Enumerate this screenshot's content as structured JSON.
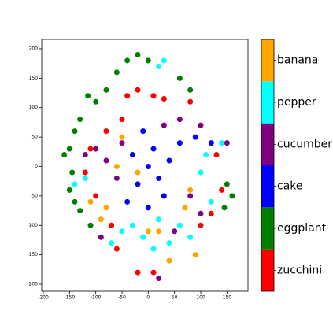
{
  "chart_data": {
    "type": "scatter",
    "xlim": [
      -203,
      190
    ],
    "ylim": [
      -212,
      216
    ],
    "xticks": [
      -200,
      -150,
      -100,
      -50,
      0,
      50,
      100,
      150
    ],
    "yticks": [
      -200,
      -150,
      -100,
      -50,
      0,
      50,
      100,
      150,
      200
    ],
    "series": [
      {
        "name": "zucchini",
        "color": "#ff0000",
        "x": [
          -40,
          -20,
          10,
          30,
          -80,
          -110,
          -120,
          -100,
          -70,
          -60,
          -20,
          10,
          130,
          140,
          120,
          100,
          80,
          -50
        ],
        "y": [
          120,
          130,
          120,
          115,
          60,
          30,
          -10,
          -50,
          -100,
          -140,
          -180,
          -180,
          20,
          -40,
          -80,
          -100,
          110,
          80
        ]
      },
      {
        "name": "eggplant",
        "color": "#008000",
        "x": [
          -130,
          -140,
          -150,
          -160,
          -145,
          -150,
          -140,
          -130,
          -110,
          -115,
          -100,
          -80,
          -60,
          -40,
          -20,
          0,
          60,
          80,
          150,
          160,
          145
        ],
        "y": [
          80,
          60,
          30,
          20,
          -10,
          -40,
          -60,
          -75,
          -100,
          120,
          110,
          130,
          160,
          180,
          190,
          180,
          150,
          130,
          -30,
          -50,
          -70
        ]
      },
      {
        "name": "cake",
        "color": "#0000ff",
        "x": [
          0,
          -20,
          -40,
          20,
          30,
          10,
          60,
          90,
          120,
          -30,
          0,
          40,
          -10
        ],
        "y": [
          0,
          -30,
          -60,
          -20,
          -50,
          30,
          40,
          50,
          40,
          20,
          -70,
          10,
          60
        ]
      },
      {
        "name": "cucumber",
        "color": "#800080",
        "x": [
          -100,
          -80,
          -60,
          -50,
          30,
          60,
          100,
          150,
          80,
          100,
          50,
          20,
          -90,
          -120
        ],
        "y": [
          30,
          10,
          -20,
          40,
          70,
          80,
          70,
          40,
          -50,
          -80,
          -110,
          -190,
          -120,
          20
        ]
      },
      {
        "name": "pepper",
        "color": "#00ffff",
        "x": [
          30,
          20,
          -30,
          -10,
          10,
          40,
          -50,
          100,
          110,
          140,
          120,
          -140,
          -120,
          60,
          80,
          -70,
          20
        ],
        "y": [
          180,
          170,
          -100,
          -120,
          -140,
          -130,
          -110,
          -10,
          20,
          40,
          -60,
          -30,
          -20,
          -100,
          -120,
          -130,
          -90
        ]
      },
      {
        "name": "banana",
        "color": "#ffa500",
        "x": [
          -90,
          -80,
          -50,
          -60,
          0,
          20,
          70,
          80,
          90,
          -110,
          -20,
          40
        ],
        "y": [
          -90,
          -70,
          50,
          0,
          -110,
          -110,
          -70,
          -40,
          -150,
          -60,
          -10,
          -160
        ]
      }
    ]
  }
}
